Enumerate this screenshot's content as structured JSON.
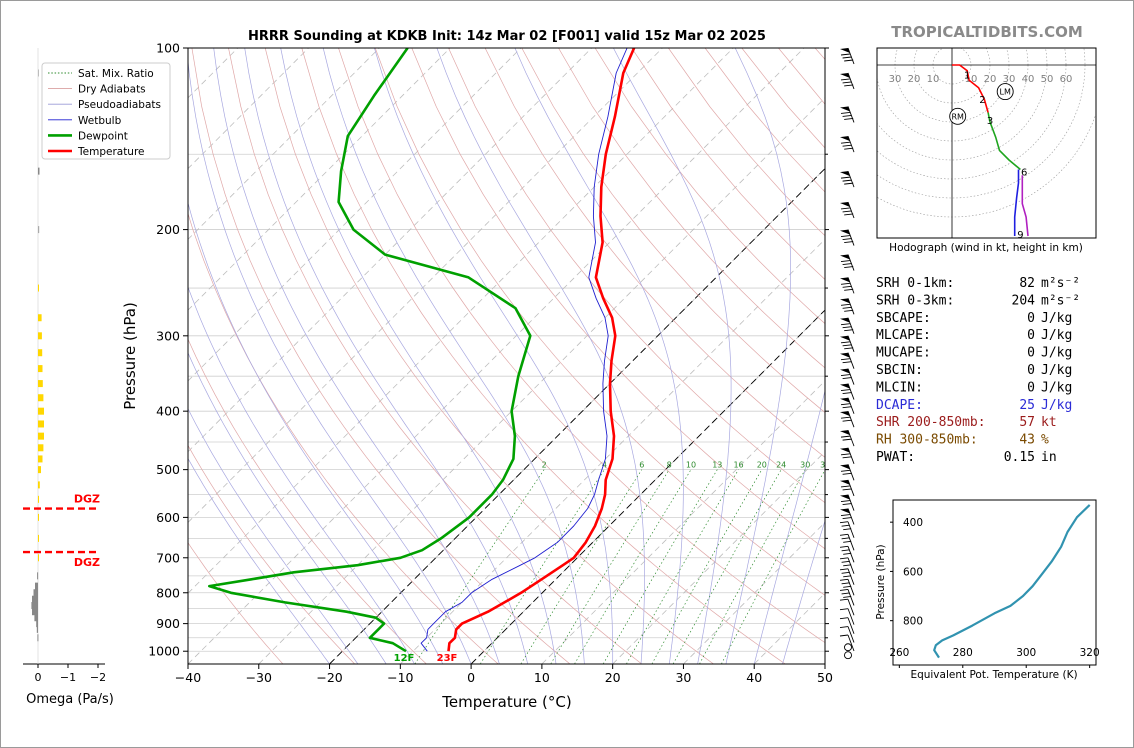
{
  "site": {
    "name": "TROPICALTIDBITS.COM",
    "color": "#8a8a8a"
  },
  "skewt": {
    "title": "HRRR Sounding at KDKB Init: 14z Mar 02 [F001] valid 15z Mar 02 2025",
    "xlabel": "Temperature (°C)",
    "ylabel": "Pressure (hPa)",
    "xlim": [
      -40,
      50
    ],
    "ylim_hpa": [
      1050,
      100
    ],
    "x_ticks": [
      "−40",
      "−30",
      "−20",
      "−10",
      "0",
      "10",
      "20",
      "30",
      "40",
      "50"
    ],
    "x_tick_values": [
      -40,
      -30,
      -20,
      -10,
      0,
      10,
      20,
      30,
      40,
      50
    ],
    "y_ticks": [
      "100",
      "200",
      "300",
      "400",
      "500",
      "600",
      "700",
      "800",
      "900",
      "1000"
    ],
    "y_tick_values": [
      100,
      200,
      300,
      400,
      500,
      600,
      700,
      800,
      900,
      1000
    ],
    "mix_ratio_labels": [
      "2",
      "4",
      "6",
      "8",
      "10",
      "13",
      "16",
      "20",
      "24",
      "30",
      "36"
    ],
    "surface_dewpoint_label": "12F",
    "surface_temp_label": "23F",
    "legend": [
      {
        "label": "Sat. Mix. Ratio",
        "color": "#2e8b2e",
        "style": "dotted"
      },
      {
        "label": "Dry Adiabats",
        "color": "#d9a0a0",
        "style": "solid"
      },
      {
        "label": "Pseudoadiabats",
        "color": "#9a9ad6",
        "style": "solid"
      },
      {
        "label": "Wetbulb",
        "color": "#1f1fd0",
        "style": "solid"
      },
      {
        "label": "Dewpoint",
        "color": "#00a000",
        "style": "bold"
      },
      {
        "label": "Temperature",
        "color": "#ff0000",
        "style": "bold"
      }
    ]
  },
  "omega": {
    "xlabel": "Omega (Pa/s)",
    "ticks": [
      "0",
      "−1",
      "−2"
    ],
    "dgz_label": "DGZ"
  },
  "hodograph": {
    "caption": "Hodograph (wind in kt, height in km)",
    "ring_labels": [
      "30",
      "20",
      "10",
      "10",
      "20",
      "30",
      "40",
      "50",
      "60"
    ],
    "height_labels": [
      "1",
      "2",
      "3",
      "6",
      "9"
    ],
    "rm_label": "RM",
    "lm_label": "LM"
  },
  "indices": [
    {
      "label": "SRH 0-1km:",
      "value": "82",
      "unit": "m²s⁻²",
      "color": "#000000"
    },
    {
      "label": "SRH 0-3km:",
      "value": "204",
      "unit": "m²s⁻²",
      "color": "#000000"
    },
    {
      "label": "SBCAPE:",
      "value": "0",
      "unit": "J/kg",
      "color": "#000000"
    },
    {
      "label": "MLCAPE:",
      "value": "0",
      "unit": "J/kg",
      "color": "#000000"
    },
    {
      "label": "MUCAPE:",
      "value": "0",
      "unit": "J/kg",
      "color": "#000000"
    },
    {
      "label": "SBCIN:",
      "value": "0",
      "unit": "J/kg",
      "color": "#000000"
    },
    {
      "label": "MLCIN:",
      "value": "0",
      "unit": "J/kg",
      "color": "#000000"
    },
    {
      "label": "DCAPE:",
      "value": "25",
      "unit": "J/kg",
      "color": "#2b2bd6"
    },
    {
      "label": "SHR 200-850mb:",
      "value": "57",
      "unit": "kt",
      "color": "#9b1c1c"
    },
    {
      "label": "RH 300-850mb:",
      "value": "43",
      "unit": "%",
      "color": "#7a4a00"
    },
    {
      "label": "PWAT:",
      "value": "0.15",
      "unit": "in",
      "color": "#000000"
    }
  ],
  "theta_e": {
    "xlabel": "Equivalent Pot. Temperature (K)",
    "ylabel": "Pressure (hPa)",
    "x_ticks": [
      "260",
      "280",
      "300",
      "320"
    ],
    "y_ticks": [
      "400",
      "600",
      "800"
    ]
  },
  "chart_data": [
    {
      "type": "line",
      "title": "HRRR Sounding at KDKB Init: 14z Mar 02 [F001] valid 15z Mar 02 2025",
      "xlabel": "Temperature (°C)",
      "ylabel": "Pressure (hPa)",
      "xlim": [
        -40,
        50
      ],
      "ylim": [
        1050,
        100
      ],
      "series": [
        {
          "name": "Temperature",
          "color": "#ff0000",
          "pressure": [
            1000,
            970,
            950,
            920,
            900,
            880,
            860,
            830,
            800,
            760,
            720,
            700,
            660,
            620,
            580,
            550,
            520,
            480,
            440,
            400,
            360,
            330,
            300,
            280,
            260,
            240,
            210,
            190,
            170,
            150,
            130,
            110,
            100
          ],
          "temp": [
            -5,
            -6,
            -6,
            -7,
            -7,
            -6,
            -5,
            -4,
            -3,
            -2,
            -1,
            -0.5,
            -1,
            -2,
            -3.5,
            -5,
            -7,
            -9,
            -12,
            -16,
            -20,
            -23,
            -26,
            -29,
            -33,
            -37,
            -41,
            -45,
            -49,
            -53,
            -57,
            -62,
            -64
          ]
        },
        {
          "name": "Dewpoint",
          "color": "#00a000",
          "pressure": [
            1000,
            970,
            950,
            920,
            900,
            880,
            860,
            830,
            800,
            780,
            760,
            740,
            720,
            700,
            680,
            650,
            600,
            550,
            520,
            480,
            440,
            400,
            350,
            300,
            270,
            240,
            220,
            200,
            180,
            160,
            140,
            120,
            100
          ],
          "temp": [
            -11,
            -14,
            -18,
            -18,
            -18,
            -20,
            -25,
            -35,
            -44,
            -48,
            -43,
            -38,
            -30,
            -25,
            -23,
            -22,
            -21,
            -21,
            -21.5,
            -23,
            -26,
            -30,
            -34,
            -38,
            -44,
            -55,
            -70,
            -78,
            -84,
            -88,
            -92,
            -94,
            -96
          ]
        },
        {
          "name": "Wetbulb",
          "color": "#1f1fd0",
          "pressure": [
            1000,
            970,
            950,
            920,
            900,
            880,
            860,
            830,
            800,
            760,
            720,
            700,
            660,
            620,
            580,
            550,
            520,
            480,
            440,
            400,
            360,
            330,
            300,
            280,
            260,
            240,
            210,
            190,
            170,
            150,
            130,
            110,
            100
          ],
          "temp": [
            -8,
            -10,
            -10,
            -11,
            -11,
            -11,
            -11,
            -10,
            -10,
            -9,
            -7,
            -6,
            -5,
            -5,
            -5.5,
            -6.5,
            -8,
            -10,
            -13,
            -17,
            -21,
            -24,
            -27,
            -30,
            -34,
            -38,
            -42,
            -46,
            -50,
            -54,
            -58,
            -63,
            -65
          ]
        }
      ]
    },
    {
      "type": "line",
      "title": "",
      "xlabel": "Equivalent Pot. Temperature (K)",
      "ylabel": "Pressure (hPa)",
      "xlim": [
        258,
        322
      ],
      "ylim": [
        980,
        310
      ],
      "series": [
        {
          "name": "",
          "x": [
            272.5,
            271,
            271.5,
            273.5,
            277,
            283,
            290,
            295,
            299,
            302,
            305,
            308,
            311,
            313,
            316,
            320
          ],
          "y": [
            950,
            920,
            900,
            880,
            860,
            820,
            770,
            740,
            700,
            660,
            610,
            560,
            500,
            440,
            380,
            330
          ]
        }
      ]
    }
  ]
}
